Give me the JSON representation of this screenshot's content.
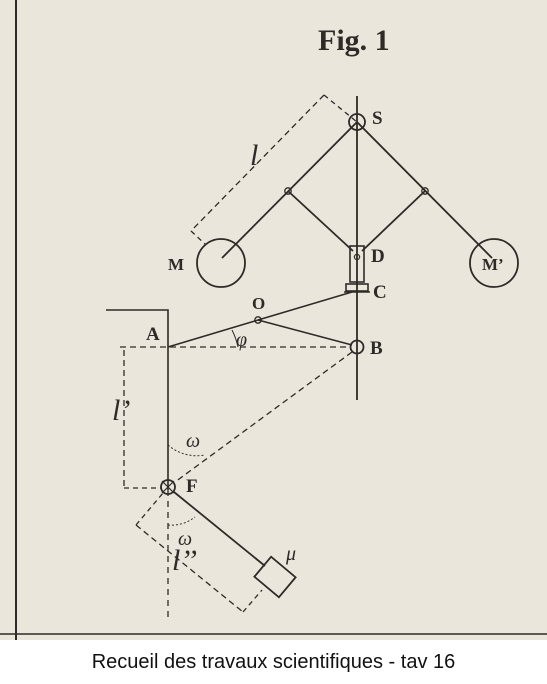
{
  "figure": {
    "title": "Fig. 1",
    "labels": {
      "S": "S",
      "D": "D",
      "C": "C",
      "B": "B",
      "A": "A",
      "O": "O",
      "F": "F",
      "M": "M",
      "M_prime": "M’",
      "l": "l",
      "l_prime": "l’",
      "l_double_prime": "l’’",
      "omega_upper": "ω",
      "omega_lower": "ω",
      "phi": "φ",
      "mu": "μ"
    }
  },
  "caption": "Recueil des travaux scientifiques  - tav 16"
}
